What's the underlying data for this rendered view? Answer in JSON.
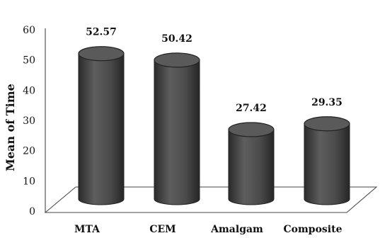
{
  "chart_data": {
    "type": "bar",
    "style": "3d-cylinder",
    "categories": [
      "MTA",
      "CEM",
      "Amalgam",
      "Composite"
    ],
    "values": [
      52.57,
      50.42,
      27.42,
      29.35
    ],
    "value_labels": [
      "52.57",
      "50.42",
      "27.42",
      "29.35"
    ],
    "ylabel": "Mean of Time",
    "xlabel": "",
    "title": "",
    "ylim": [
      0,
      60
    ],
    "yticks": [
      "0",
      "10",
      "20",
      "30",
      "40",
      "50",
      "60"
    ],
    "grid": false,
    "legend": "none",
    "colors": {
      "bar": "#505050",
      "bar_top": "#5a5a5a",
      "floor_stroke": "#444444"
    }
  }
}
